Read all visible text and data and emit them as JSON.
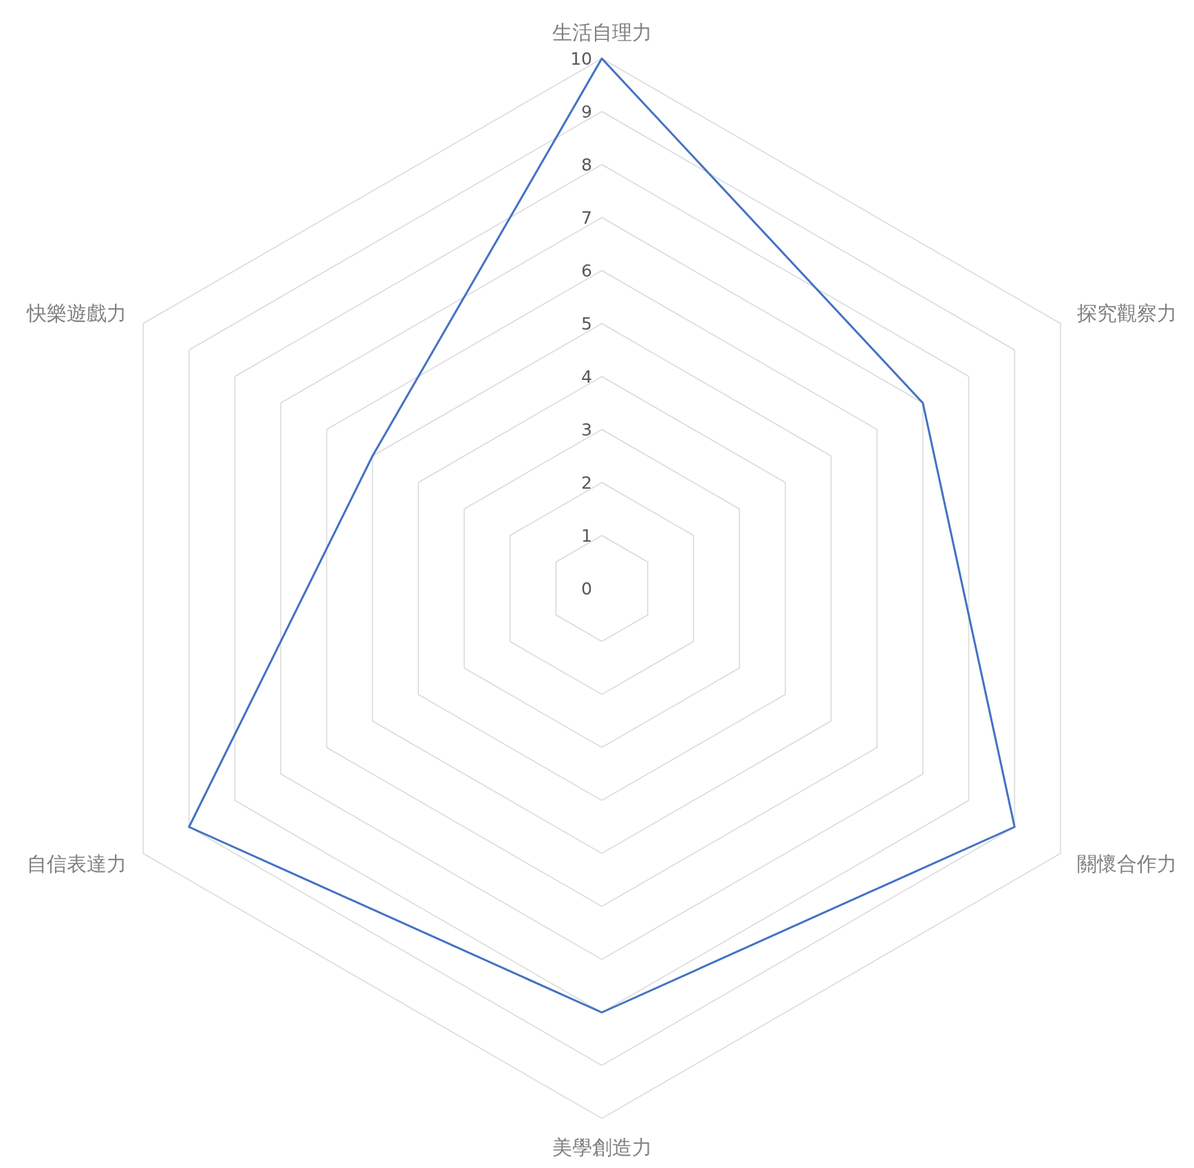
{
  "chart_data": {
    "type": "radar",
    "categories": [
      "生活自理力",
      "探究觀察力",
      "關懷合作力",
      "美學創造力",
      "自信表達力",
      "快樂遊戲力"
    ],
    "series": [
      {
        "color": "#4472c4",
        "values": [
          10,
          7,
          9,
          8,
          9,
          5
        ]
      }
    ],
    "ylim": [
      0,
      10
    ],
    "yticks": [
      0,
      1,
      2,
      3,
      4,
      5,
      6,
      7,
      8,
      9,
      10
    ],
    "grid": true
  }
}
